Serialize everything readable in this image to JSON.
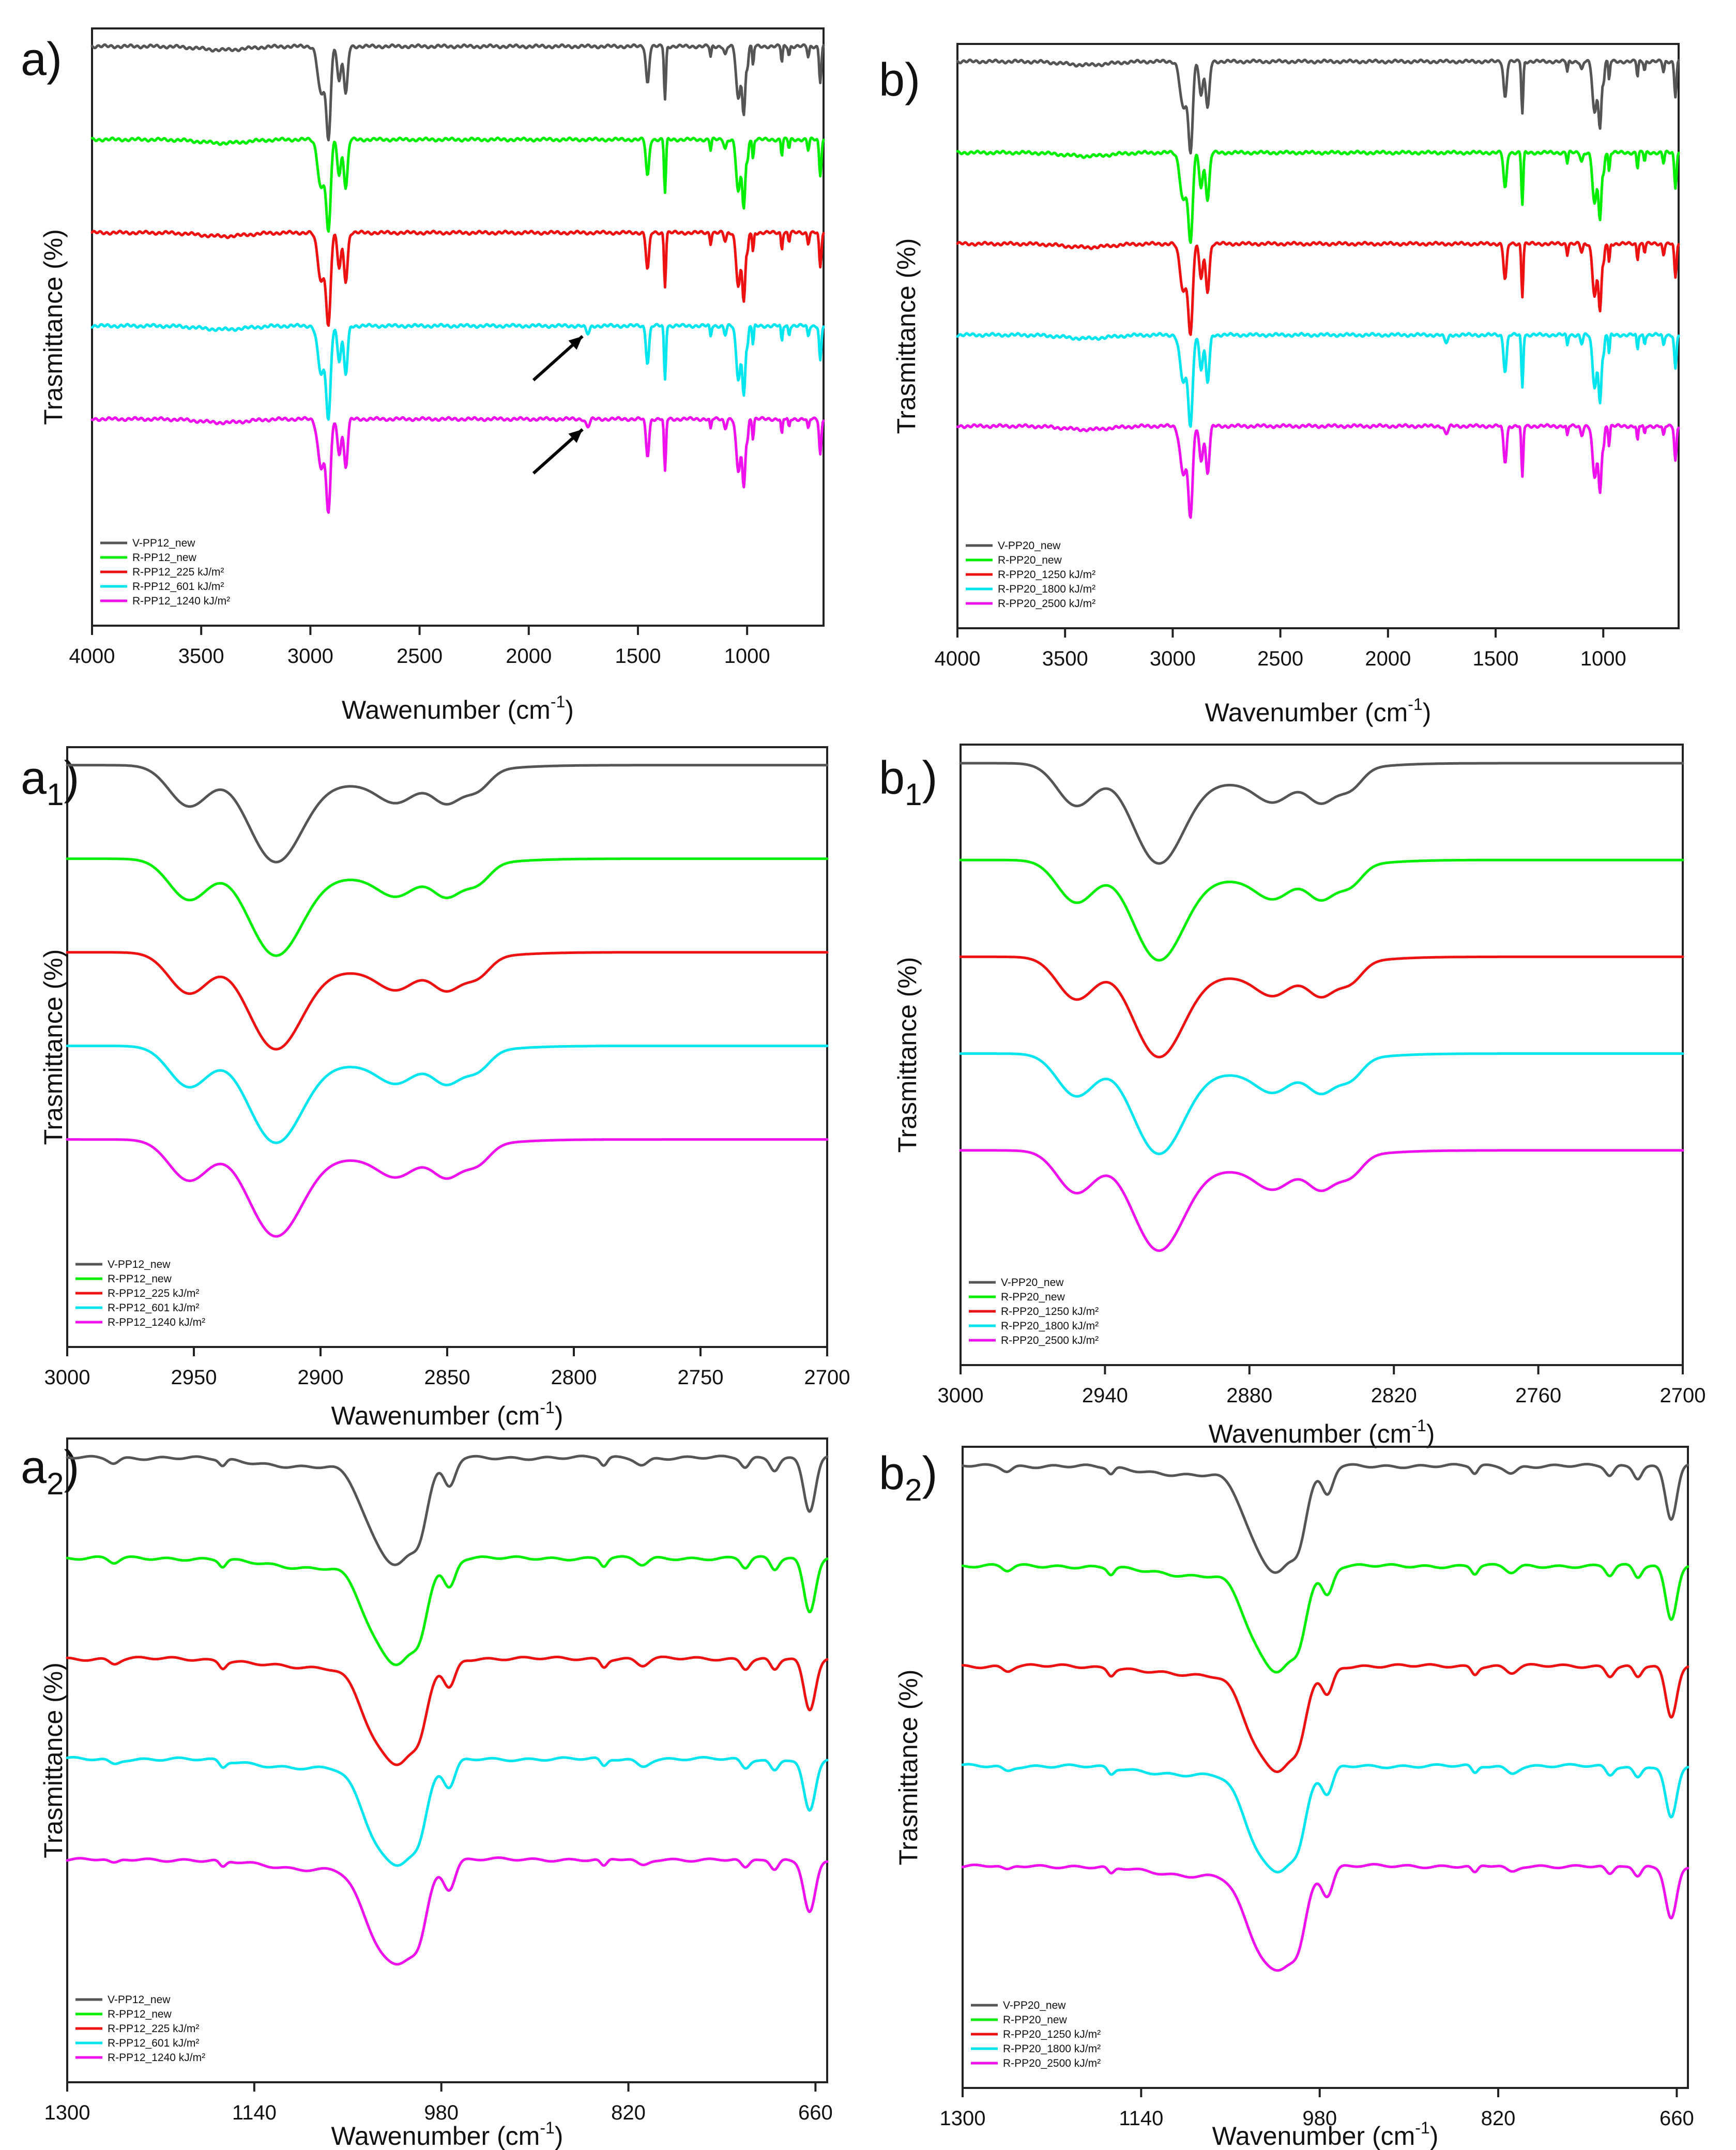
{
  "chart_data": [
    {
      "panel": "a)",
      "type": "line",
      "region": "full",
      "xlabel": "Wawenumber (cm-1)",
      "ylabel": "Trasmittance (%)",
      "xlim": [
        4000,
        650
      ],
      "x_reversed": true,
      "xticks": [
        4000,
        3500,
        3000,
        2500,
        2000,
        1500,
        1000
      ],
      "yticks": [],
      "legend_position": "bottom-left",
      "series": [
        {
          "name": "V-PP12_new",
          "color": "#555555"
        },
        {
          "name": "R-PP12_new",
          "color": "#00ee00"
        },
        {
          "name": "R-PP12_225 kJ/m²",
          "color": "#ee1111"
        },
        {
          "name": "R-PP12_601 kJ/m²",
          "color": "#00e5ee"
        },
        {
          "name": "R-PP12_1240 kJ/m²",
          "color": "#ee11ee"
        }
      ],
      "annotations": [
        {
          "type": "arrow",
          "points_to_x": 1730,
          "series_index": 3
        },
        {
          "type": "arrow",
          "points_to_x": 1730,
          "series_index": 4
        }
      ]
    },
    {
      "panel": "b)",
      "type": "line",
      "region": "full",
      "xlabel": "Wavenumber (cm-1)",
      "ylabel": "Trasmittance (%)",
      "xlim": [
        4000,
        650
      ],
      "x_reversed": true,
      "xticks": [
        4000,
        3500,
        3000,
        2500,
        2000,
        1500,
        1000
      ],
      "yticks": [],
      "legend_position": "bottom-left",
      "series": [
        {
          "name": "V-PP20_new",
          "color": "#555555"
        },
        {
          "name": "R-PP20_new",
          "color": "#00ee00"
        },
        {
          "name": "R-PP20_1250 kJ/m²",
          "color": "#ee1111"
        },
        {
          "name": "R-PP20_1800 kJ/m²",
          "color": "#00e5ee"
        },
        {
          "name": "R-PP20_2500 kJ/m²",
          "color": "#ee11ee"
        }
      ]
    },
    {
      "panel": "a1)",
      "type": "line",
      "region": "ch",
      "xlabel": "Wawenumber (cm-1)",
      "ylabel": "Trasmittance (%)",
      "xlim": [
        3000,
        2700
      ],
      "x_reversed": true,
      "xticks": [
        3000,
        2950,
        2900,
        2850,
        2800,
        2750,
        2700
      ],
      "yticks": [],
      "legend_position": "bottom-left",
      "series": [
        {
          "name": "V-PP12_new",
          "color": "#555555"
        },
        {
          "name": "R-PP12_new",
          "color": "#00ee00"
        },
        {
          "name": "R-PP12_225 kJ/m²",
          "color": "#ee1111"
        },
        {
          "name": "R-PP12_601 kJ/m²",
          "color": "#00e5ee"
        },
        {
          "name": "R-PP12_1240 kJ/m²",
          "color": "#ee11ee"
        }
      ]
    },
    {
      "panel": "b1)",
      "type": "line",
      "region": "ch",
      "xlabel": "Wavenumber (cm-1)",
      "ylabel": "Trasmittance (%)",
      "xlim": [
        3000,
        2700
      ],
      "x_reversed": true,
      "xticks": [
        3000,
        2940,
        2880,
        2820,
        2760,
        2700
      ],
      "yticks": [],
      "legend_position": "bottom-left",
      "series": [
        {
          "name": "V-PP20_new",
          "color": "#555555"
        },
        {
          "name": "R-PP20_new",
          "color": "#00ee00"
        },
        {
          "name": "R-PP20_1250 kJ/m²",
          "color": "#ee1111"
        },
        {
          "name": "R-PP20_1800 kJ/m²",
          "color": "#00e5ee"
        },
        {
          "name": "R-PP20_2500 kJ/m²",
          "color": "#ee11ee"
        }
      ]
    },
    {
      "panel": "a2)",
      "type": "line",
      "region": "fp",
      "xlabel": "Wawenumber (cm-1)",
      "ylabel": "Trasmittance (%)",
      "xlim": [
        1300,
        650
      ],
      "x_reversed": true,
      "xticks": [
        1300,
        1140,
        980,
        820,
        660
      ],
      "yticks": [],
      "legend_position": "bottom-left",
      "series": [
        {
          "name": "V-PP12_new",
          "color": "#555555"
        },
        {
          "name": "R-PP12_new",
          "color": "#00ee00"
        },
        {
          "name": "R-PP12_225 kJ/m²",
          "color": "#ee1111"
        },
        {
          "name": "R-PP12_601 kJ/m²",
          "color": "#00e5ee"
        },
        {
          "name": "R-PP12_1240 kJ/m²",
          "color": "#ee11ee"
        }
      ]
    },
    {
      "panel": "b2)",
      "type": "line",
      "region": "fp",
      "xlabel": "Wavenumber (cm-1)",
      "ylabel": "Trasmittance (%)",
      "xlim": [
        1300,
        650
      ],
      "x_reversed": true,
      "xticks": [
        1300,
        1140,
        980,
        820,
        660
      ],
      "yticks": [],
      "legend_position": "bottom-left",
      "series": [
        {
          "name": "V-PP20_new",
          "color": "#555555"
        },
        {
          "name": "R-PP20_new",
          "color": "#00ee00"
        },
        {
          "name": "R-PP20_1250 kJ/m²",
          "color": "#ee1111"
        },
        {
          "name": "R-PP20_1800 kJ/m²",
          "color": "#00e5ee"
        },
        {
          "name": "R-PP20_2500 kJ/m²",
          "color": "#ee11ee"
        }
      ]
    }
  ]
}
